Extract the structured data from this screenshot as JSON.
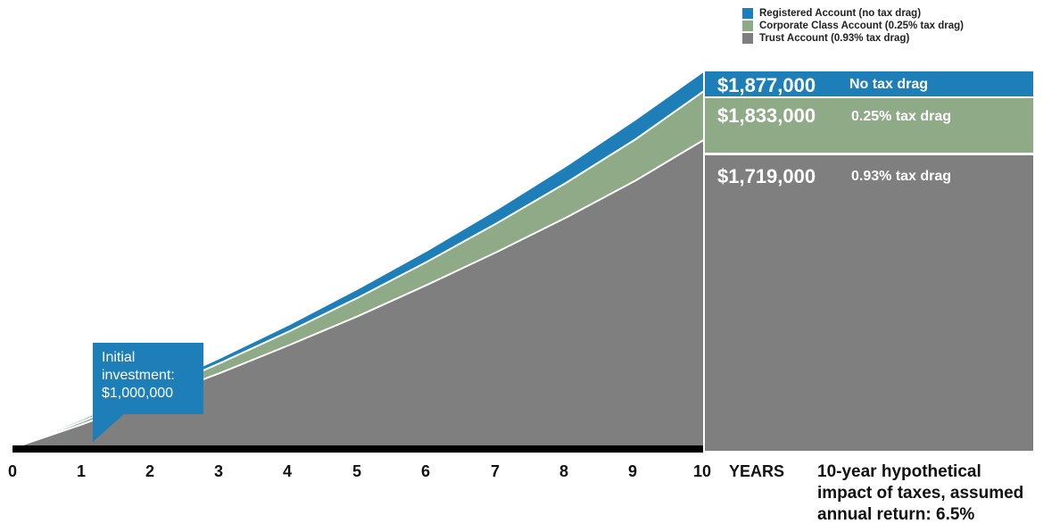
{
  "chart_data": {
    "type": "area",
    "x": [
      0,
      1,
      2,
      3,
      4,
      5,
      6,
      7,
      8,
      9,
      10
    ],
    "xlabel": "YEARS",
    "ylim": [
      1000000,
      1877000
    ],
    "series": [
      {
        "name": "Registered Account (no tax drag)",
        "color": "#1e7fb8",
        "values": [
          1000000,
          1065000,
          1134000,
          1208000,
          1286000,
          1370000,
          1459000,
          1554000,
          1655000,
          1763000,
          1877000
        ]
      },
      {
        "name": "Corporate Class Account (0.25% tax drag)",
        "color": "#8faa86",
        "values": [
          1000000,
          1062000,
          1128000,
          1198000,
          1272000,
          1351000,
          1435000,
          1524000,
          1618000,
          1719000,
          1833000
        ]
      },
      {
        "name": "Trust Account (0.93% tax drag)",
        "color": "#7f7f7f",
        "values": [
          1000000,
          1055000,
          1114000,
          1175000,
          1240000,
          1308000,
          1381000,
          1457000,
          1537000,
          1623000,
          1719000
        ]
      }
    ],
    "end_labels": [
      {
        "amount": "$1,877,000",
        "drag": "No tax drag"
      },
      {
        "amount": "$1,833,000",
        "drag": "0.25% tax drag"
      },
      {
        "amount": "$1,719,000",
        "drag": "0.93% tax drag"
      }
    ],
    "annotation": [
      "Initial",
      "investment:",
      "$1,000,000"
    ],
    "caption": [
      "10-year hypothetical",
      "impact of taxes, assumed",
      "annual return: 6.5%"
    ],
    "legend_position": "top-right"
  }
}
